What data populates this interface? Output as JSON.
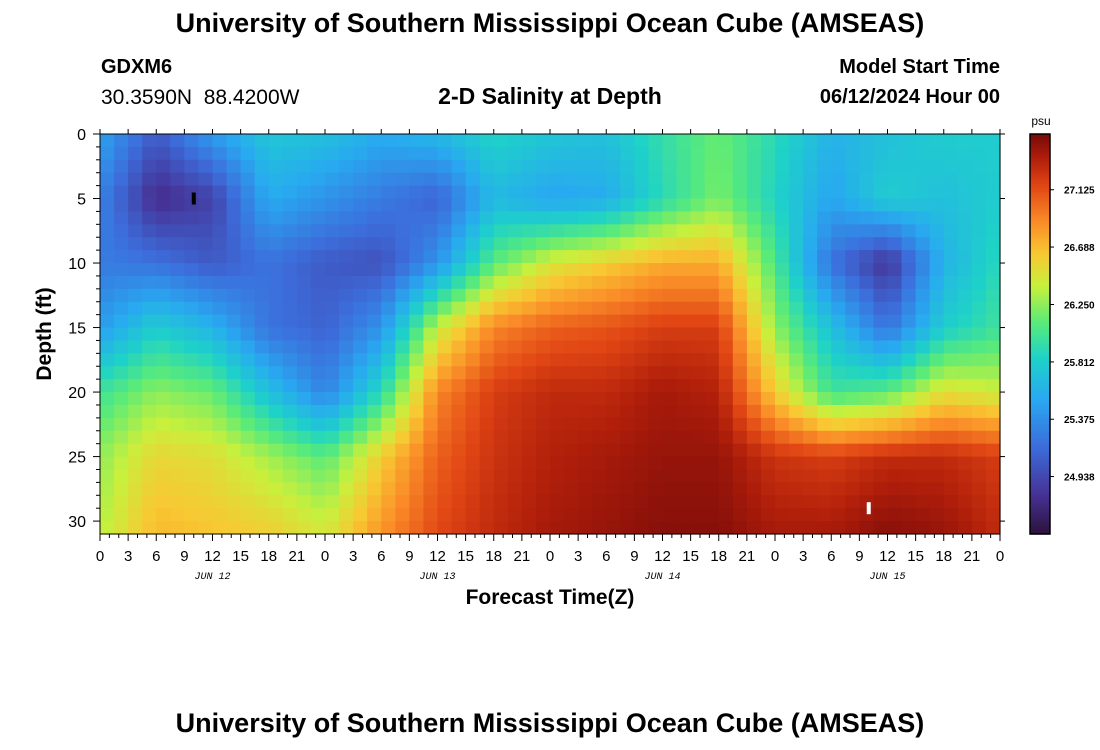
{
  "header": {
    "title": "University of Southern Mississippi Ocean Cube (AMSEAS)",
    "station": "GDXM6",
    "coords": "30.3590N  88.4200W",
    "product": "2-D Salinity at Depth",
    "model_start_label": "Model Start Time",
    "model_start_value": "06/12/2024 Hour 00"
  },
  "footer": {
    "title": "University of Southern Mississippi Ocean Cube (AMSEAS)"
  },
  "chart_data": {
    "type": "heatmap",
    "title": "2-D Salinity at Depth",
    "xlabel": "Forecast Time(Z)",
    "ylabel": "Depth (ft)",
    "x_unit": "hours from 06/12/2024 00Z",
    "xlim": [
      0,
      96
    ],
    "ylim": [
      0,
      31
    ],
    "x_ticks": [
      0,
      3,
      6,
      9,
      12,
      15,
      18,
      21,
      24,
      27,
      30,
      33,
      36,
      39,
      42,
      45,
      48,
      51,
      54,
      57,
      60,
      63,
      66,
      69,
      72,
      75,
      78,
      81,
      84,
      87,
      90,
      93,
      96
    ],
    "x_tick_labels": [
      "0",
      "3",
      "6",
      "9",
      "12",
      "15",
      "18",
      "21",
      "0",
      "3",
      "6",
      "9",
      "12",
      "15",
      "18",
      "21",
      "0",
      "3",
      "6",
      "9",
      "12",
      "15",
      "18",
      "21",
      "0",
      "3",
      "6",
      "9",
      "12",
      "15",
      "18",
      "21",
      "0"
    ],
    "date_labels": [
      {
        "x": 12,
        "label": "JUN 12"
      },
      {
        "x": 36,
        "label": "JUN 13"
      },
      {
        "x": 60,
        "label": "JUN 14"
      },
      {
        "x": 84,
        "label": "JUN 15"
      }
    ],
    "y_ticks": [
      0,
      5,
      10,
      15,
      20,
      25,
      30
    ],
    "colorbar": {
      "unit": "psu",
      "min": 24.5,
      "max": 27.55,
      "tick_values": [
        24.938,
        25.375,
        25.812,
        26.25,
        26.688,
        27.125
      ],
      "tick_labels": [
        "24.938",
        "25.375",
        "25.812",
        "26.250",
        "26.688",
        "27.125"
      ]
    },
    "time_hours": [
      0,
      6,
      12,
      18,
      24,
      30,
      36,
      42,
      48,
      54,
      60,
      66,
      72,
      78,
      84,
      90,
      96
    ],
    "depth_ft": [
      0,
      5,
      10,
      15,
      20,
      25,
      31
    ],
    "salinity_psu": [
      [
        25.5,
        25.05,
        25.45,
        25.75,
        25.7,
        25.55,
        25.65,
        25.85,
        25.75,
        25.7,
        25.95,
        26.15,
        25.9,
        25.6,
        25.7,
        25.8,
        25.8
      ],
      [
        25.3,
        24.75,
        24.9,
        25.55,
        25.4,
        25.25,
        25.1,
        25.65,
        25.5,
        25.55,
        25.9,
        26.2,
        25.85,
        25.5,
        25.8,
        25.7,
        25.8
      ],
      [
        25.25,
        25.2,
        25.05,
        25.2,
        25.05,
        25.0,
        25.4,
        26.1,
        26.45,
        26.6,
        26.75,
        26.75,
        26.05,
        25.2,
        24.8,
        25.6,
        25.9
      ],
      [
        25.45,
        25.8,
        25.6,
        25.2,
        25.1,
        25.4,
        26.4,
        26.9,
        27.05,
        27.1,
        27.2,
        27.2,
        26.25,
        25.7,
        25.2,
        25.8,
        26.0
      ],
      [
        26.0,
        26.25,
        26.15,
        25.7,
        25.3,
        25.9,
        26.9,
        27.2,
        27.3,
        27.3,
        27.4,
        27.35,
        26.6,
        26.0,
        26.1,
        26.5,
        26.4
      ],
      [
        26.25,
        26.55,
        26.5,
        26.3,
        26.1,
        26.6,
        27.05,
        27.25,
        27.35,
        27.4,
        27.45,
        27.45,
        27.25,
        27.2,
        27.3,
        27.3,
        27.2
      ],
      [
        26.35,
        26.7,
        26.65,
        26.6,
        26.45,
        26.85,
        27.15,
        27.3,
        27.4,
        27.45,
        27.5,
        27.5,
        27.4,
        27.4,
        27.5,
        27.45,
        27.3
      ]
    ],
    "markers": [
      {
        "time": 10,
        "depth": 5,
        "color": "#000000"
      },
      {
        "time": 82,
        "depth": 29,
        "color": "#ffffff"
      }
    ]
  }
}
